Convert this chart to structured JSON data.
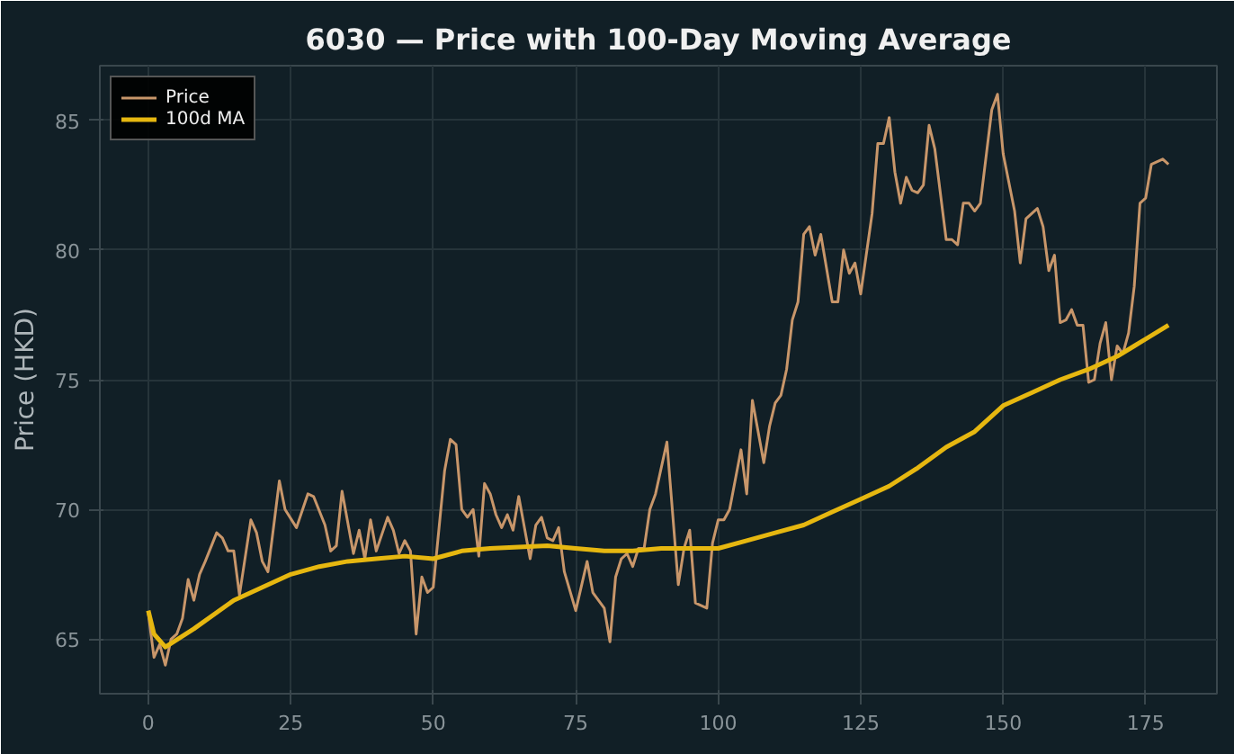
{
  "chart_data": {
    "type": "line",
    "title": "6030 — Price with 100-Day Moving Average",
    "ylabel": "Price (HKD)",
    "xlim": [
      -8.5,
      187.5
    ],
    "ylim": [
      62.9,
      87.1
    ],
    "xticks": [
      0,
      25,
      50,
      75,
      100,
      125,
      150,
      175
    ],
    "yticks": [
      65,
      70,
      75,
      80,
      85
    ],
    "grid": true,
    "legend": "top left",
    "series": [
      {
        "name": "Price",
        "color": "#c8966a",
        "x": [
          0,
          1,
          2,
          3,
          4,
          5,
          6,
          7,
          8,
          9,
          10,
          12,
          13,
          14,
          15,
          16,
          18,
          19,
          20,
          21,
          23,
          24,
          26,
          28,
          29,
          31,
          32,
          33,
          34,
          36,
          37,
          38,
          39,
          40,
          42,
          43,
          44,
          45,
          46,
          47,
          48,
          49,
          50,
          52,
          53,
          54,
          55,
          56,
          57,
          58,
          59,
          60,
          61,
          62,
          63,
          64,
          65,
          67,
          68,
          69,
          70,
          71,
          72,
          73,
          75,
          77,
          78,
          80,
          81,
          82,
          83,
          84,
          85,
          86,
          87,
          88,
          89,
          91,
          93,
          94,
          95,
          96,
          98,
          99,
          100,
          101,
          102,
          104,
          105,
          106,
          108,
          109,
          110,
          111,
          112,
          113,
          114,
          115,
          116,
          117,
          118,
          120,
          121,
          122,
          123,
          124,
          125,
          127,
          128,
          129,
          130,
          131,
          132,
          133,
          134,
          135,
          136,
          137,
          138,
          140,
          141,
          142,
          143,
          144,
          145,
          146,
          148,
          149,
          150,
          152,
          153,
          154,
          156,
          157,
          158,
          159,
          160,
          161,
          162,
          163,
          164,
          165,
          166,
          167,
          168,
          169,
          170,
          171,
          172,
          173,
          174,
          175,
          176,
          178,
          179
        ],
        "values": [
          66.0,
          64.3,
          64.8,
          64.0,
          65.0,
          65.2,
          65.8,
          67.3,
          66.5,
          67.5,
          68.0,
          69.1,
          68.9,
          68.4,
          68.4,
          66.7,
          69.6,
          69.1,
          68.0,
          67.6,
          71.1,
          70.0,
          69.3,
          70.6,
          70.5,
          69.4,
          68.4,
          68.6,
          70.7,
          68.3,
          69.2,
          68.1,
          69.6,
          68.4,
          69.7,
          69.2,
          68.3,
          68.8,
          68.4,
          65.2,
          67.4,
          66.8,
          67.0,
          71.5,
          72.7,
          72.5,
          70.0,
          69.7,
          70.0,
          68.2,
          71.0,
          70.6,
          69.8,
          69.3,
          69.8,
          69.2,
          70.5,
          68.1,
          69.4,
          69.7,
          68.9,
          68.8,
          69.3,
          67.6,
          66.1,
          68.0,
          66.8,
          66.2,
          64.9,
          67.4,
          68.1,
          68.3,
          67.8,
          68.5,
          68.5,
          70.0,
          70.6,
          72.6,
          67.1,
          68.5,
          69.2,
          66.4,
          66.2,
          68.7,
          69.6,
          69.6,
          70.0,
          72.3,
          70.6,
          74.2,
          71.8,
          73.2,
          74.1,
          74.4,
          75.4,
          77.3,
          78.0,
          80.6,
          80.9,
          79.8,
          80.6,
          78.0,
          78.0,
          80.0,
          79.1,
          79.5,
          78.3,
          81.4,
          84.1,
          84.1,
          85.1,
          83.0,
          81.8,
          82.8,
          82.3,
          82.2,
          82.5,
          84.8,
          83.9,
          80.4,
          80.4,
          80.2,
          81.8,
          81.8,
          81.5,
          81.8,
          85.4,
          86.0,
          83.7,
          81.5,
          79.5,
          81.2,
          81.6,
          80.9,
          79.2,
          79.8,
          77.2,
          77.3,
          77.7,
          77.1,
          77.1,
          74.9,
          75.0,
          76.4,
          77.2,
          75.0,
          76.3,
          76.0,
          76.8,
          78.6,
          81.8,
          82.0,
          83.3,
          83.5,
          83.3
        ]
      },
      {
        "name": "100d MA",
        "color": "#e6b710",
        "x": [
          0,
          1,
          3,
          8,
          15,
          20,
          25,
          30,
          35,
          40,
          45,
          50,
          55,
          60,
          65,
          70,
          75,
          80,
          85,
          90,
          95,
          100,
          105,
          110,
          115,
          120,
          125,
          130,
          135,
          140,
          145,
          150,
          155,
          160,
          165,
          170,
          173,
          179
        ],
        "values": [
          66.1,
          65.2,
          64.7,
          65.4,
          66.5,
          67.0,
          67.5,
          67.8,
          68.0,
          68.1,
          68.2,
          68.1,
          68.4,
          68.5,
          68.55,
          68.6,
          68.5,
          68.4,
          68.4,
          68.5,
          68.5,
          68.5,
          68.8,
          69.1,
          69.4,
          69.9,
          70.4,
          70.9,
          71.6,
          72.4,
          73.0,
          74.0,
          74.5,
          75.0,
          75.4,
          75.9,
          76.3,
          77.1
        ]
      }
    ]
  }
}
